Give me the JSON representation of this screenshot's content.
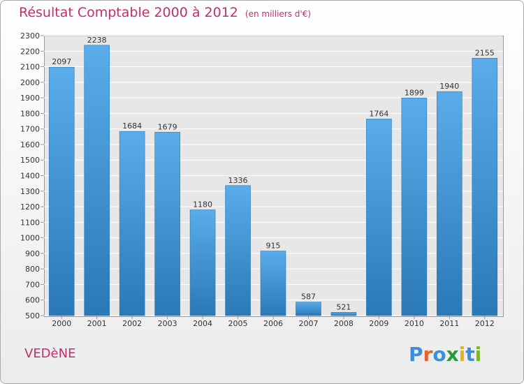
{
  "title": "Résultat Comptable 2000 à 2012",
  "subtitle": "(en milliers d'€)",
  "city": "VEDèNE",
  "logo": "Proxiti",
  "colors": {
    "title": "#c0306a",
    "bar_top": "#5aacea",
    "bar_bottom": "#2a79b6",
    "grid": "#ffffff",
    "plot_bg": "#e7e7e7"
  },
  "chart_data": {
    "type": "bar",
    "categories": [
      "2000",
      "2001",
      "2002",
      "2003",
      "2004",
      "2005",
      "2006",
      "2007",
      "2008",
      "2009",
      "2010",
      "2011",
      "2012"
    ],
    "values": [
      2097,
      2238,
      1684,
      1679,
      1180,
      1336,
      915,
      587,
      521,
      1764,
      1899,
      1940,
      2155
    ],
    "ylim": [
      500,
      2300
    ],
    "yticks": [
      500,
      600,
      700,
      800,
      900,
      1000,
      1100,
      1200,
      1300,
      1400,
      1500,
      1600,
      1700,
      1800,
      1900,
      2000,
      2100,
      2200,
      2300
    ],
    "grid": true,
    "data_labels": true
  }
}
